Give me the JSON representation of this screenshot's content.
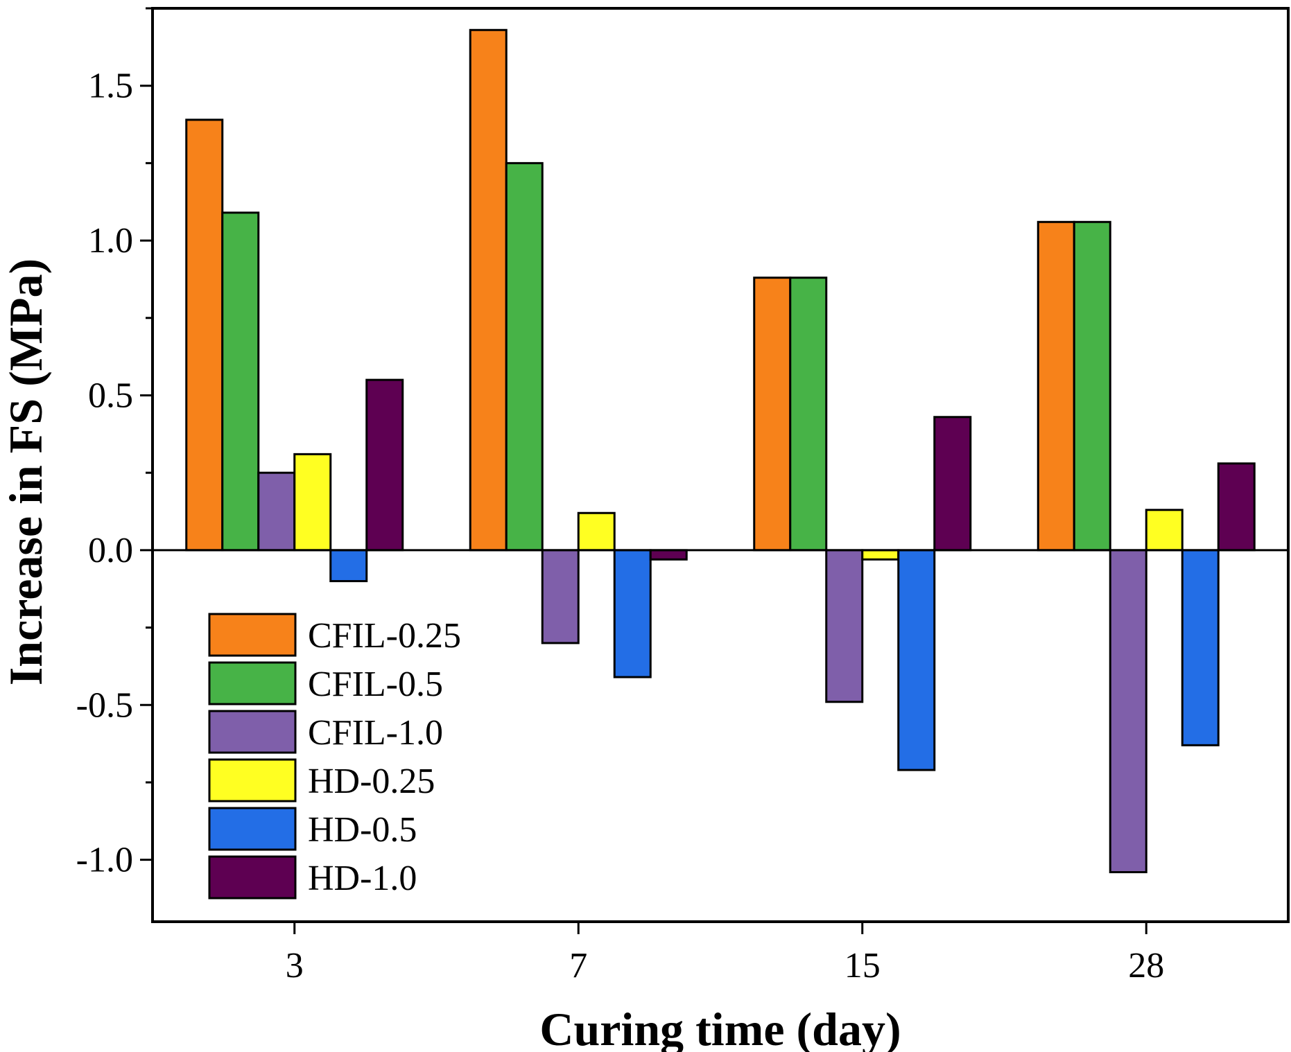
{
  "chart_data": {
    "type": "bar",
    "title": "",
    "xlabel": "Curing time (day)",
    "ylabel": "Increase in FS (MPa)",
    "categories": [
      "3",
      "7",
      "15",
      "28"
    ],
    "ylim": [
      -1.2,
      1.75
    ],
    "yticks": [
      -1.0,
      -0.5,
      0.0,
      0.5,
      1.0,
      1.5
    ],
    "ytick_labels": [
      "-1.0",
      "-0.5",
      "0.0",
      "0.5",
      "1.0",
      "1.5"
    ],
    "grid": false,
    "legend_position": "bottom-left",
    "series": [
      {
        "name": "CFIL-0.25",
        "color": "#F7821A",
        "values": [
          1.39,
          1.68,
          0.88,
          1.06
        ]
      },
      {
        "name": "CFIL-0.5",
        "color": "#47B347",
        "values": [
          1.09,
          1.25,
          0.88,
          1.06
        ]
      },
      {
        "name": "CFIL-1.0",
        "color": "#7F5FAA",
        "values": [
          0.25,
          -0.3,
          -0.49,
          -1.04
        ]
      },
      {
        "name": "HD-0.25",
        "color": "#FFFF22",
        "values": [
          0.31,
          0.12,
          -0.03,
          0.13
        ]
      },
      {
        "name": "HD-0.5",
        "color": "#236EE6",
        "values": [
          -0.1,
          -0.41,
          -0.71,
          -0.63
        ]
      },
      {
        "name": "HD-1.0",
        "color": "#5E0052",
        "values": [
          0.55,
          -0.03,
          0.43,
          0.28
        ]
      }
    ]
  }
}
